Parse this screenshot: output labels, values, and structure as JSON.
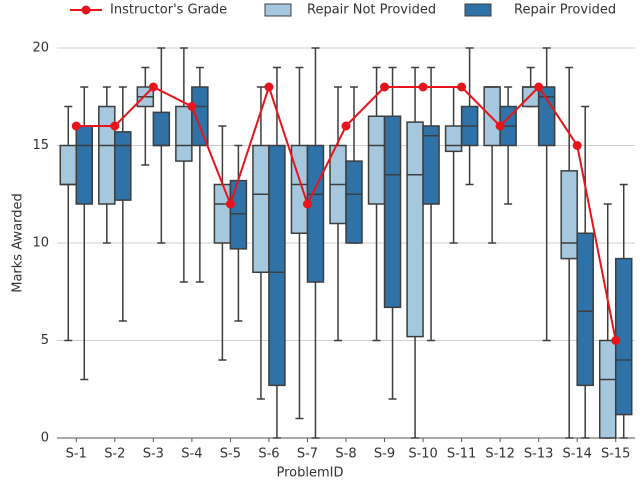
{
  "chart_data": {
    "type": "box",
    "xlabel": "ProblemID",
    "ylabel": "Marks Awarded",
    "categories": [
      "S-1",
      "S-2",
      "S-3",
      "S-4",
      "S-5",
      "S-6",
      "S-7",
      "S-8",
      "S-9",
      "S-10",
      "S-11",
      "S-12",
      "S-13",
      "S-14",
      "S-15"
    ],
    "ylim": [
      0,
      21
    ],
    "yticks": [
      0,
      5,
      10,
      15,
      20
    ],
    "grid": true,
    "series": [
      {
        "name": "Repair Not Provided",
        "color": "#a6c8de",
        "values": [
          {
            "low": 5,
            "q1": 13,
            "median": 13,
            "q3": 15,
            "high": 17
          },
          {
            "low": 10,
            "q1": 12,
            "median": 15,
            "q3": 17,
            "high": 18
          },
          {
            "low": 14,
            "q1": 17,
            "median": 17.5,
            "q3": 18,
            "high": 19
          },
          {
            "low": 8,
            "q1": 14.2,
            "median": 15,
            "q3": 17,
            "high": 20
          },
          {
            "low": 4,
            "q1": 10,
            "median": 12,
            "q3": 13,
            "high": 16
          },
          {
            "low": 2,
            "q1": 8.5,
            "median": 12.5,
            "q3": 15,
            "high": 18
          },
          {
            "low": 1,
            "q1": 10.5,
            "median": 13,
            "q3": 15,
            "high": 19
          },
          {
            "low": 5,
            "q1": 11,
            "median": 13,
            "q3": 15,
            "high": 18
          },
          {
            "low": 5,
            "q1": 12,
            "median": 15,
            "q3": 16.5,
            "high": 19
          },
          {
            "low": 0,
            "q1": 5.2,
            "median": 13.5,
            "q3": 16.2,
            "high": 19
          },
          {
            "low": 10,
            "q1": 14.7,
            "median": 15,
            "q3": 16,
            "high": 18
          },
          {
            "low": 10,
            "q1": 15,
            "median": 18,
            "q3": 18,
            "high": 18
          },
          {
            "low": 17,
            "q1": 17,
            "median": 18,
            "q3": 18,
            "high": 19
          },
          {
            "low": 0,
            "q1": 9.2,
            "median": 10,
            "q3": 13.7,
            "high": 19
          },
          {
            "low": 0,
            "q1": 0,
            "median": 3,
            "q3": 5,
            "high": 12
          }
        ]
      },
      {
        "name": "Repair Provided",
        "color": "#2f72a8",
        "values": [
          {
            "low": 3,
            "q1": 12,
            "median": 15,
            "q3": 16,
            "high": 18
          },
          {
            "low": 6,
            "q1": 12.2,
            "median": 15,
            "q3": 15.7,
            "high": 18
          },
          {
            "low": 10,
            "q1": 15,
            "median": 15,
            "q3": 16.7,
            "high": 20
          },
          {
            "low": 8,
            "q1": 15,
            "median": 17,
            "q3": 18,
            "high": 19
          },
          {
            "low": 6,
            "q1": 9.7,
            "median": 11.5,
            "q3": 13.2,
            "high": 15
          },
          {
            "low": 0,
            "q1": 2.7,
            "median": 8.5,
            "q3": 15,
            "high": 19
          },
          {
            "low": 0,
            "q1": 8,
            "median": 12.5,
            "q3": 15,
            "high": 20
          },
          {
            "low": 10,
            "q1": 10,
            "median": 12.5,
            "q3": 14.2,
            "high": 18
          },
          {
            "low": 2,
            "q1": 6.7,
            "median": 13.5,
            "q3": 16.5,
            "high": 19
          },
          {
            "low": 5,
            "q1": 12,
            "median": 15.5,
            "q3": 16,
            "high": 19
          },
          {
            "low": 13,
            "q1": 15,
            "median": 16,
            "q3": 17,
            "high": 20
          },
          {
            "low": 12,
            "q1": 15,
            "median": 16,
            "q3": 17,
            "high": 18
          },
          {
            "low": 5,
            "q1": 15,
            "median": 17.5,
            "q3": 18,
            "high": 20
          },
          {
            "low": 0,
            "q1": 2.7,
            "median": 6.5,
            "q3": 10.5,
            "high": 17
          },
          {
            "low": 0,
            "q1": 1.2,
            "median": 4,
            "q3": 9.2,
            "high": 13
          }
        ]
      }
    ],
    "line": {
      "name": "Instructor's Grade",
      "color": "#e8141c",
      "values": [
        16,
        16,
        18,
        17,
        12,
        18,
        12,
        16,
        18,
        18,
        18,
        16,
        18,
        15,
        5
      ]
    }
  }
}
